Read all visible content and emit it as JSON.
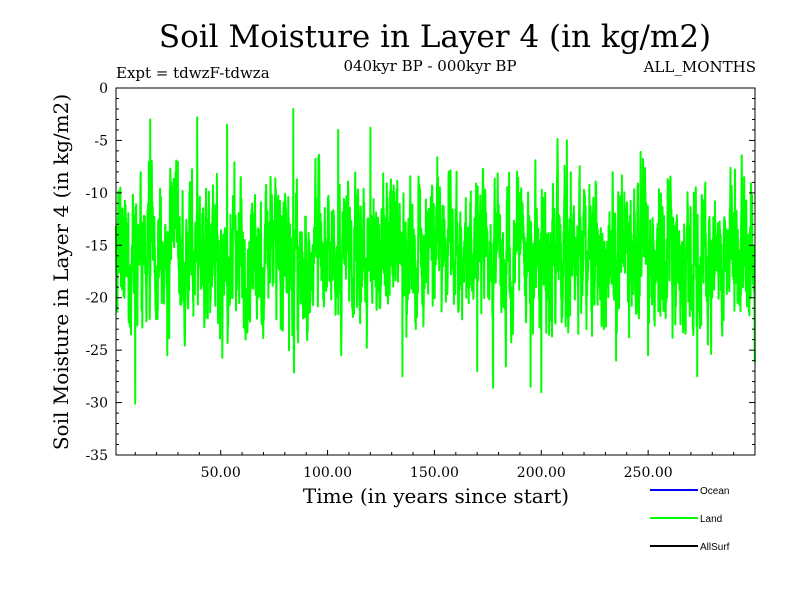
{
  "chart_data": {
    "type": "line",
    "title": "Soil Moisture in Layer 4 (in kg/m2)",
    "subtitle_left": "Expt = tdwzF-tdwza",
    "subtitle_center": "040kyr BP - 000kyr BP",
    "subtitle_right": "ALL_MONTHS",
    "xlabel": "Time (in years since start)",
    "ylabel": "Soil Moisture in Layer 4 (in kg/m2)",
    "xlim": [
      1,
      300
    ],
    "ylim": [
      -35,
      0
    ],
    "x_ticks": [
      50,
      100,
      150,
      200,
      250
    ],
    "x_tick_labels": [
      "50.00",
      "100.00",
      "150.00",
      "200.00",
      "250.00"
    ],
    "y_ticks": [
      0,
      -5,
      -10,
      -15,
      -20,
      -25,
      -30,
      -35
    ],
    "y_tick_labels": [
      "0",
      "-5",
      "-10",
      "-15",
      "-20",
      "-25",
      "-30",
      "-35"
    ],
    "legend": [
      {
        "name": "Ocean",
        "color": "#0000ff"
      },
      {
        "name": "Land",
        "color": "#00ff00"
      },
      {
        "name": "AllSurf",
        "color": "#000000"
      }
    ],
    "series": [
      {
        "name": "Land",
        "color": "#00ff00",
        "x_start": 1,
        "x_step": 0.0833,
        "mean": -15.8,
        "min": -30.1,
        "max": -2.0,
        "anchors": [
          {
            "x": 3,
            "y": -9.5
          },
          {
            "x": 5,
            "y": -20.0
          },
          {
            "x": 8,
            "y": -23.5
          },
          {
            "x": 10,
            "y": -30.1
          },
          {
            "x": 17,
            "y": -3.0
          },
          {
            "x": 25,
            "y": -25.5
          },
          {
            "x": 39,
            "y": -2.8
          },
          {
            "x": 53,
            "y": -3.5
          },
          {
            "x": 67,
            "y": -22.0
          },
          {
            "x": 82,
            "y": -25.0
          },
          {
            "x": 84,
            "y": -2.0
          },
          {
            "x": 105,
            "y": -4.0
          },
          {
            "x": 120,
            "y": -3.8
          },
          {
            "x": 135,
            "y": -27.5
          },
          {
            "x": 170,
            "y": -27.0
          },
          {
            "x": 195,
            "y": -28.5
          },
          {
            "x": 200,
            "y": -29.0
          },
          {
            "x": 212,
            "y": -5.0
          },
          {
            "x": 235,
            "y": -26.0
          },
          {
            "x": 250,
            "y": -25.5
          },
          {
            "x": 273,
            "y": -27.5
          },
          {
            "x": 295,
            "y": -8.5
          },
          {
            "x": 298,
            "y": -20.0
          }
        ]
      }
    ]
  }
}
